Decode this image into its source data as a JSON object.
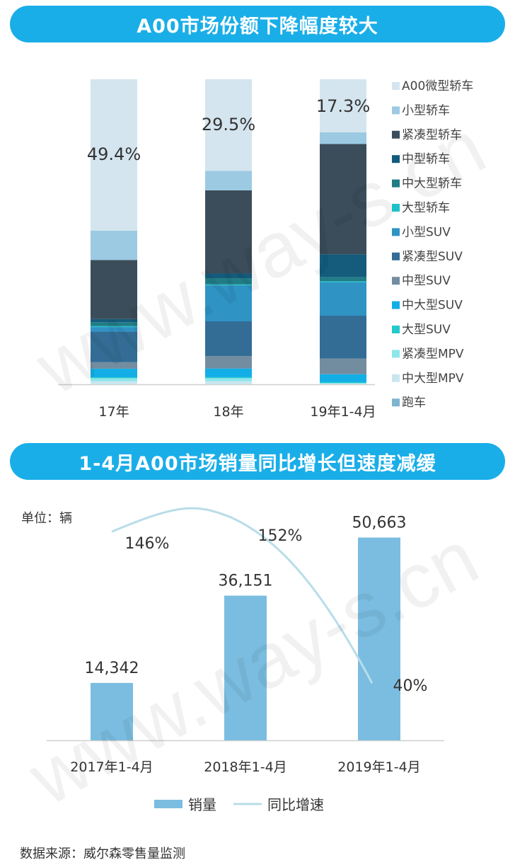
{
  "chart1": {
    "title": "A00市场份额下降幅度较大",
    "chart_data": {
      "type": "bar",
      "stacked": true,
      "percent": true,
      "categories": [
        "17年",
        "18年",
        "19年1-4月"
      ],
      "series": [
        {
          "name": "跑车",
          "color": "#7fb4d0",
          "values": [
            0.0,
            0.0,
            0.0
          ]
        },
        {
          "name": "中大型MPV",
          "color": "#c9e6ef",
          "values": [
            1.0,
            1.0,
            0.2
          ]
        },
        {
          "name": "紧凑型MPV",
          "color": "#8ee6ea",
          "values": [
            1.0,
            1.0,
            0.2
          ]
        },
        {
          "name": "大型SUV",
          "color": "#25c9cc",
          "values": [
            0.3,
            0.3,
            0.3
          ]
        },
        {
          "name": "中大型SUV",
          "color": "#13aee6",
          "values": [
            2.8,
            2.8,
            2.6
          ]
        },
        {
          "name": "中型SUV",
          "color": "#738da0",
          "values": [
            2.1,
            4.0,
            5.1
          ]
        },
        {
          "name": "紧凑型SUV",
          "color": "#336d96",
          "values": [
            10.0,
            11.2,
            14.0
          ]
        },
        {
          "name": "小型SUV",
          "color": "#2f93c4",
          "values": [
            1.5,
            11.6,
            10.9
          ]
        },
        {
          "name": "大型轿车",
          "color": "#1fc1c8",
          "values": [
            0.3,
            0.3,
            0.3
          ]
        },
        {
          "name": "中大型轿车",
          "color": "#217c86",
          "values": [
            1.3,
            2.0,
            1.4
          ]
        },
        {
          "name": "中型轿车",
          "color": "#145b7c",
          "values": [
            1.0,
            1.5,
            7.4
          ]
        },
        {
          "name": "紧凑型轿车",
          "color": "#3b4d5a",
          "values": [
            19.3,
            26.8,
            36.0
          ]
        },
        {
          "name": "小型轿车",
          "color": "#9ccae3",
          "values": [
            9.6,
            6.3,
            3.8
          ]
        },
        {
          "name": "A00微型轿车",
          "color": "#d4e5ef",
          "values": [
            49.4,
            29.5,
            17.3
          ]
        }
      ],
      "labels": [
        "49.4%",
        "29.5%",
        "17.3%"
      ],
      "legend": [
        "A00微型轿车",
        "小型轿车",
        "紧凑型轿车",
        "中型轿车",
        "中大型轿车",
        "大型轿车",
        "小型SUV",
        "紧凑型SUV",
        "中型SUV",
        "中大型SUV",
        "大型SUV",
        "紧凑型MPV",
        "中大型MPV",
        "跑车"
      ],
      "legend_position": "right"
    }
  },
  "chart2": {
    "title": "1-4月A00市场销量同比增长但速度减缓",
    "unit_label": "单位：辆",
    "chart_data": {
      "type": "bar",
      "categories": [
        "2017年1-4月",
        "2018年1-4月",
        "2019年1-4月"
      ],
      "series": [
        {
          "name": "销量",
          "type": "bar",
          "color": "#7bbde0",
          "values": [
            14342,
            36151,
            50663
          ],
          "labels": [
            "14,342",
            "36,151",
            "50,663"
          ]
        },
        {
          "name": "同比增速",
          "type": "line",
          "color": "#b8dde9",
          "values": [
            146,
            152,
            40
          ],
          "labels": [
            "146%",
            "152%",
            "40%"
          ]
        }
      ],
      "ylim": [
        0,
        55000
      ],
      "line_ylim": [
        0,
        160
      ],
      "legend_position": "bottom"
    }
  },
  "source": "数据来源：威尔森零售量监测",
  "watermark": "www.way-s.cn"
}
